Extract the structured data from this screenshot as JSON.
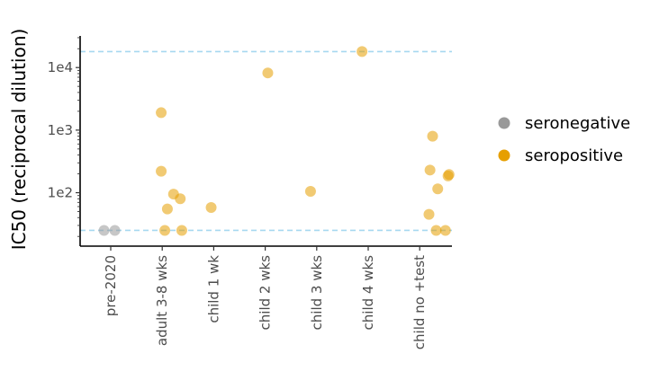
{
  "chart_data": {
    "type": "scatter",
    "title": "",
    "xlabel": "",
    "ylabel": "IC50 (reciprocal dilution)",
    "y_scale": "log10",
    "ylim": [
      14,
      32000
    ],
    "y_ticks": [
      {
        "value": 100,
        "label": "1e2"
      },
      {
        "value": 1000,
        "label": "1e3"
      },
      {
        "value": 10000,
        "label": "1e4"
      }
    ],
    "categories": [
      "pre-2020",
      "adult 3-8 wks",
      "child 1 wk",
      "child 2 wks",
      "child 3 wks",
      "child 4 wks",
      "child no +test"
    ],
    "reference_lines": [
      {
        "y": 18000,
        "color": "#a6d8f0",
        "style": "dashed"
      },
      {
        "y": 25,
        "color": "#a6d8f0",
        "style": "dashed"
      }
    ],
    "grid": false,
    "legend_position": "right",
    "series": [
      {
        "name": "seronegative",
        "color": "#999999",
        "points": [
          {
            "x": "pre-2020",
            "y": 25,
            "jitter": -0.13
          },
          {
            "x": "pre-2020",
            "y": 25,
            "jitter": 0.08
          }
        ]
      },
      {
        "name": "seropositive",
        "color": "#E69F00",
        "points": [
          {
            "x": "adult 3-8 wks",
            "y": 1900,
            "jitter": -0.02
          },
          {
            "x": "adult 3-8 wks",
            "y": 220,
            "jitter": -0.02
          },
          {
            "x": "adult 3-8 wks",
            "y": 95,
            "jitter": 0.22
          },
          {
            "x": "adult 3-8 wks",
            "y": 80,
            "jitter": 0.35
          },
          {
            "x": "adult 3-8 wks",
            "y": 55,
            "jitter": 0.1
          },
          {
            "x": "adult 3-8 wks",
            "y": 25,
            "jitter": 0.05
          },
          {
            "x": "adult 3-8 wks",
            "y": 25,
            "jitter": 0.38
          },
          {
            "x": "child 1 wk",
            "y": 58,
            "jitter": -0.05
          },
          {
            "x": "child 2 wks",
            "y": 8200,
            "jitter": 0.05
          },
          {
            "x": "child 3 wks",
            "y": 105,
            "jitter": -0.12
          },
          {
            "x": "child 4 wks",
            "y": 18000,
            "jitter": -0.12
          },
          {
            "x": "child no +test",
            "y": 800,
            "jitter": 0.25
          },
          {
            "x": "child no +test",
            "y": 230,
            "jitter": 0.2
          },
          {
            "x": "child no +test",
            "y": 195,
            "jitter": 0.57
          },
          {
            "x": "child no +test",
            "y": 185,
            "jitter": 0.55
          },
          {
            "x": "child no +test",
            "y": 115,
            "jitter": 0.35
          },
          {
            "x": "child no +test",
            "y": 45,
            "jitter": 0.18
          },
          {
            "x": "child no +test",
            "y": 25,
            "jitter": 0.32
          },
          {
            "x": "child no +test",
            "y": 25,
            "jitter": 0.5
          }
        ]
      }
    ]
  }
}
